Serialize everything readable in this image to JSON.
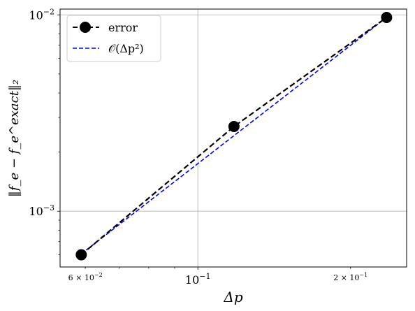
{
  "chart_data": {
    "type": "line",
    "xscale": "log",
    "yscale": "log",
    "xlim": [
      0.0535,
      0.258
    ],
    "ylim": [
      0.00052,
      0.0107
    ],
    "grid": true,
    "legend_placement": "top-left",
    "xlabel": "Δp",
    "ylabel": "‖f_e − f_e^exact‖₂",
    "x_ticks": [
      {
        "value": 0.06,
        "label_base": "6 × 10",
        "label_exp": "−2",
        "kind": "minor"
      },
      {
        "value": 0.1,
        "label_base": "10",
        "label_exp": "−1",
        "kind": "major"
      },
      {
        "value": 0.2,
        "label_base": "2 × 10",
        "label_exp": "−1",
        "kind": "minor"
      }
    ],
    "y_ticks": [
      {
        "value": 0.001,
        "label_base": "10",
        "label_exp": "−3",
        "kind": "major"
      },
      {
        "value": 0.01,
        "label_base": "10",
        "label_exp": "−2",
        "kind": "major"
      }
    ],
    "series": [
      {
        "name": "error",
        "color": "#000000",
        "style": "dashed-with-circles",
        "x": [
          0.0589,
          0.1178,
          0.2356
        ],
        "y": [
          0.0006,
          0.0027,
          0.0097
        ]
      },
      {
        "name": "𝒪(Δp²)",
        "color": "#0000ff",
        "style": "dashed",
        "x": [
          0.0589,
          0.1178,
          0.2356
        ],
        "y": [
          0.000606,
          0.002425,
          0.0097
        ]
      }
    ]
  }
}
